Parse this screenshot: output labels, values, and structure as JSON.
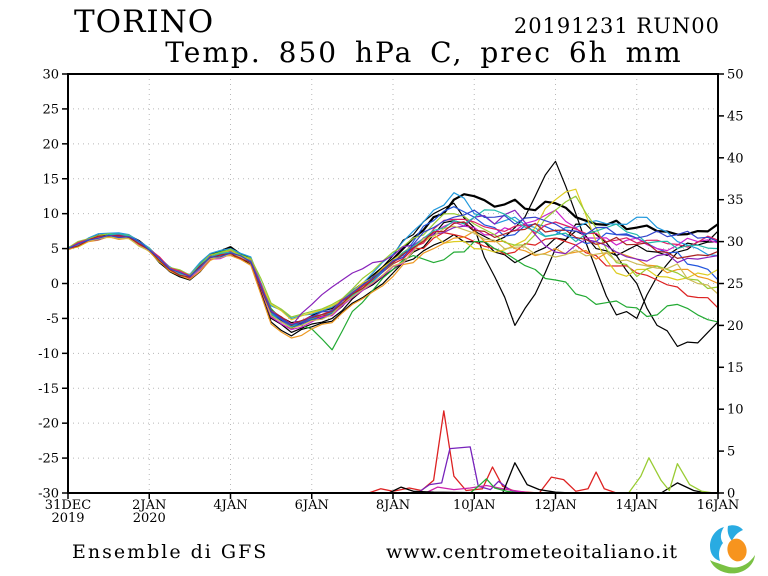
{
  "header": {
    "station": "TORINO",
    "run": "20191231 RUN00",
    "subtitle": "Temp. 850 hPa C, prec 6h mm"
  },
  "footer": {
    "model": "Ensemble di GFS",
    "website": "www.centrometeoitaliano.it",
    "logo_colors": {
      "blue": "#29abe2",
      "orange": "#f7941e",
      "green": "#7ac143"
    }
  },
  "chart_data": {
    "type": "line",
    "title": "Temp. 850 hPa C, prec 6h mm",
    "grid": {
      "horizontal_every": 5,
      "vertical_every_days": 2,
      "style": "dotted",
      "color": "#b8b8b8"
    },
    "x_axis": {
      "range_days": [
        0,
        16
      ],
      "labels": [
        {
          "label": "31DEC",
          "sublabel": "2019",
          "day": 0
        },
        {
          "label": "2JAN",
          "sublabel": "2020",
          "day": 2
        },
        {
          "label": "4JAN",
          "day": 4
        },
        {
          "label": "6JAN",
          "day": 6
        },
        {
          "label": "8JAN",
          "day": 8
        },
        {
          "label": "10JAN",
          "day": 10
        },
        {
          "label": "12JAN",
          "day": 12
        },
        {
          "label": "14JAN",
          "day": 14
        },
        {
          "label": "16JAN",
          "day": 16
        }
      ]
    },
    "y_left": {
      "name": "temperature-850hPa-C",
      "range": [
        -30,
        30
      ],
      "ticks": [
        30,
        25,
        20,
        15,
        10,
        5,
        0,
        -5,
        -10,
        -15,
        -20,
        -25,
        -30
      ]
    },
    "y_right": {
      "name": "precipitation-6h-mm",
      "range": [
        0,
        50
      ],
      "ticks": [
        50,
        45,
        40,
        35,
        30,
        25,
        20,
        15,
        10,
        5,
        0
      ]
    },
    "time_step_days": 0.5,
    "temperature_series": [
      {
        "name": "op",
        "color": "#000000",
        "width": 2.2,
        "values": [
          5.0,
          6.3,
          7.0,
          6.8,
          4.9,
          2.0,
          0.9,
          4.0,
          5.2,
          3.4,
          -4.6,
          -6.4,
          -5.2,
          -4.4,
          -1.5,
          0.8,
          3.5,
          6.5,
          9.5,
          12.0,
          12.5,
          11.0,
          12.0,
          10.5,
          11.5,
          9.5,
          8.5,
          9.0,
          8.0,
          7.5,
          7.0,
          7.5,
          8.5
        ]
      },
      {
        "name": "p01",
        "color": "#000000",
        "width": 1.2,
        "values": [
          5.1,
          6.4,
          7.1,
          6.9,
          5.0,
          2.3,
          1.1,
          4.2,
          4.6,
          3.6,
          -3.8,
          -5.6,
          -4.6,
          -3.6,
          -1.0,
          1.2,
          4.0,
          7.0,
          10.0,
          11.5,
          8.0,
          1.0,
          -6.0,
          -1.5,
          5.0,
          8.5,
          7.0,
          4.0,
          5.5,
          4.5,
          5.0,
          5.5,
          6.0
        ]
      },
      {
        "name": "p02",
        "color": "#000000",
        "width": 1.2,
        "values": [
          5.0,
          6.2,
          6.9,
          6.6,
          4.7,
          1.8,
          0.7,
          3.6,
          4.4,
          3.0,
          -5.0,
          -7.0,
          -5.8,
          -5.0,
          -2.2,
          -0.2,
          2.0,
          4.5,
          7.0,
          9.0,
          7.5,
          6.0,
          8.0,
          12.5,
          17.5,
          10.0,
          2.0,
          -4.5,
          -5.0,
          1.0,
          4.5,
          6.0,
          7.5
        ]
      },
      {
        "name": "p03",
        "color": "#000000",
        "width": 1.2,
        "values": [
          4.9,
          6.1,
          6.8,
          6.5,
          4.6,
          1.7,
          0.5,
          3.4,
          4.2,
          2.8,
          -5.5,
          -7.5,
          -6.2,
          -5.4,
          -2.8,
          -1.0,
          1.5,
          3.5,
          5.5,
          7.0,
          6.0,
          4.5,
          3.0,
          4.5,
          6.5,
          7.5,
          5.0,
          4.0,
          0.0,
          -6.0,
          -9.0,
          -8.5,
          -5.5
        ]
      },
      {
        "name": "p04",
        "color": "#dd2222",
        "width": 1.2,
        "values": [
          5.0,
          6.2,
          6.8,
          6.6,
          4.8,
          2.1,
          1.0,
          3.8,
          4.4,
          3.2,
          -4.0,
          -6.0,
          -5.0,
          -4.0,
          -1.6,
          0.5,
          2.8,
          5.0,
          6.5,
          7.0,
          6.0,
          5.0,
          4.5,
          5.5,
          6.5,
          5.5,
          4.0,
          2.5,
          1.5,
          0.5,
          -0.5,
          -2.0,
          -3.5
        ]
      },
      {
        "name": "p05",
        "color": "#22aa33",
        "width": 1.2,
        "values": [
          5.1,
          6.3,
          7.0,
          6.7,
          4.9,
          2.2,
          1.2,
          4.0,
          4.8,
          3.5,
          -3.6,
          -6.0,
          -6.5,
          -9.5,
          -4.0,
          -1.0,
          2.0,
          4.0,
          3.0,
          4.5,
          6.0,
          5.0,
          3.5,
          2.0,
          0.5,
          -1.5,
          -3.0,
          -2.5,
          -3.5,
          -4.5,
          -3.0,
          -4.5,
          -5.5
        ]
      },
      {
        "name": "p06",
        "color": "#2255dd",
        "width": 1.2,
        "values": [
          4.9,
          6.2,
          6.9,
          6.7,
          4.8,
          2.0,
          0.9,
          3.7,
          4.5,
          3.1,
          -4.2,
          -6.2,
          -5.1,
          -4.2,
          -1.8,
          0.3,
          3.2,
          6.0,
          9.0,
          11.0,
          9.5,
          8.0,
          7.0,
          8.5,
          7.5,
          6.5,
          6.0,
          7.0,
          6.5,
          5.0,
          4.5,
          2.5,
          0.5
        ]
      },
      {
        "name": "p07",
        "color": "#2299dd",
        "width": 1.2,
        "values": [
          5.2,
          6.5,
          7.2,
          7.0,
          5.1,
          2.4,
          1.3,
          4.3,
          5.0,
          3.8,
          -3.2,
          -5.0,
          -4.4,
          -3.4,
          -1.0,
          1.5,
          4.2,
          7.5,
          10.5,
          13.0,
          10.0,
          8.5,
          9.5,
          8.0,
          7.0,
          8.0,
          9.0,
          8.5,
          9.5,
          8.0,
          6.0,
          5.0,
          4.0
        ]
      },
      {
        "name": "p08",
        "color": "#cc22cc",
        "width": 1.2,
        "values": [
          5.0,
          6.1,
          6.7,
          6.5,
          4.7,
          1.9,
          0.8,
          3.5,
          4.2,
          2.9,
          -4.8,
          -6.6,
          -5.5,
          -4.6,
          -2.0,
          0.0,
          2.4,
          4.8,
          7.2,
          8.8,
          8.0,
          7.0,
          7.5,
          9.0,
          10.5,
          8.0,
          6.5,
          5.5,
          6.5,
          5.0,
          5.5,
          6.0,
          5.8
        ]
      },
      {
        "name": "p09",
        "color": "#ddcc22",
        "width": 1.2,
        "values": [
          5.0,
          6.0,
          6.6,
          6.4,
          4.6,
          2.0,
          1.1,
          3.9,
          4.7,
          3.4,
          -3.0,
          -5.2,
          -4.2,
          -3.2,
          -1.2,
          0.8,
          3.4,
          5.5,
          7.0,
          6.0,
          5.0,
          4.5,
          5.5,
          8.0,
          12.0,
          13.5,
          6.0,
          1.5,
          2.0,
          1.0,
          0.5,
          1.5,
          2.0
        ]
      },
      {
        "name": "p10",
        "color": "#ee9922",
        "width": 1.2,
        "values": [
          4.8,
          6.0,
          6.7,
          6.5,
          4.6,
          1.8,
          0.6,
          3.3,
          4.0,
          2.6,
          -5.8,
          -7.8,
          -6.5,
          -5.6,
          -3.0,
          -1.2,
          1.0,
          3.0,
          5.0,
          6.5,
          7.5,
          6.0,
          5.0,
          4.0,
          5.0,
          4.5,
          3.5,
          4.5,
          3.5,
          2.5,
          2.0,
          1.0,
          0.0
        ]
      },
      {
        "name": "p11",
        "color": "#99cc33",
        "width": 1.2,
        "values": [
          5.1,
          6.4,
          7.1,
          6.9,
          5.0,
          2.3,
          1.2,
          4.1,
          4.9,
          3.6,
          -2.8,
          -4.8,
          -4.0,
          -3.0,
          -0.8,
          1.8,
          4.5,
          6.5,
          8.5,
          10.0,
          8.5,
          7.0,
          5.5,
          7.0,
          10.5,
          12.5,
          8.0,
          3.0,
          1.0,
          2.5,
          1.5,
          0.5,
          -0.5
        ]
      },
      {
        "name": "p12",
        "color": "#8822bb",
        "width": 1.2,
        "values": [
          5.0,
          6.2,
          6.8,
          6.6,
          4.8,
          2.1,
          1.0,
          3.8,
          4.3,
          3.0,
          -4.4,
          -6.1,
          -3.0,
          -0.5,
          1.5,
          3.0,
          4.0,
          5.5,
          7.0,
          8.0,
          9.5,
          8.5,
          10.5,
          7.0,
          4.5,
          5.5,
          6.0,
          4.5,
          3.5,
          4.0,
          3.0,
          3.5,
          4.0
        ]
      },
      {
        "name": "p13",
        "color": "#dd2266",
        "width": 1.2,
        "values": [
          5.0,
          6.3,
          6.9,
          6.7,
          4.9,
          2.2,
          1.1,
          3.9,
          4.6,
          3.3,
          -3.9,
          -5.8,
          -4.7,
          -3.8,
          -1.4,
          0.7,
          3.1,
          5.2,
          7.8,
          9.2,
          8.8,
          7.8,
          8.2,
          7.2,
          8.8,
          7.8,
          7.2,
          6.2,
          5.8,
          6.2,
          5.6,
          5.9,
          6.2
        ]
      },
      {
        "name": "p14",
        "color": "#22bbaa",
        "width": 1.2,
        "values": [
          5.1,
          6.3,
          7.0,
          6.8,
          4.9,
          2.1,
          1.0,
          3.8,
          4.5,
          3.2,
          -4.3,
          -6.2,
          -5.0,
          -4.1,
          -1.7,
          0.4,
          2.9,
          5.3,
          7.6,
          9.0,
          9.5,
          10.5,
          9.0,
          7.5,
          7.0,
          6.0,
          7.5,
          8.5,
          7.0,
          6.0,
          5.0,
          5.5,
          5.0
        ]
      },
      {
        "name": "p15",
        "color": "#ccbb55",
        "width": 1.2,
        "values": [
          4.9,
          6.1,
          6.7,
          6.5,
          4.7,
          2.0,
          0.9,
          3.6,
          4.2,
          2.9,
          -4.6,
          -6.4,
          -5.3,
          -4.4,
          -1.9,
          0.1,
          2.5,
          4.6,
          6.8,
          8.2,
          7.2,
          6.2,
          5.2,
          4.2,
          3.8,
          4.8,
          4.2,
          3.2,
          2.8,
          2.2,
          2.8,
          0.0,
          -1.5
        ]
      },
      {
        "name": "p16",
        "color": "#aa2222",
        "width": 1.2,
        "values": [
          5.0,
          6.2,
          6.8,
          6.6,
          4.8,
          2.0,
          0.9,
          3.7,
          4.3,
          3.0,
          -4.1,
          -6.0,
          -4.9,
          -4.0,
          -1.5,
          0.6,
          3.0,
          5.1,
          7.4,
          8.6,
          7.6,
          6.6,
          7.6,
          8.6,
          7.6,
          6.6,
          5.6,
          6.6,
          5.6,
          4.6,
          3.6,
          4.1,
          4.6
        ]
      },
      {
        "name": "p17",
        "color": "#3344cc",
        "width": 1.2,
        "values": [
          5.0,
          6.2,
          6.9,
          6.7,
          4.8,
          2.1,
          1.0,
          3.8,
          4.4,
          3.1,
          -4.0,
          -5.9,
          -4.8,
          -3.9,
          -1.3,
          0.8,
          3.3,
          5.6,
          8.0,
          9.5,
          10.5,
          9.5,
          8.5,
          9.5,
          8.5,
          7.5,
          8.0,
          7.0,
          6.5,
          7.5,
          7.0,
          6.5,
          6.0
        ]
      }
    ],
    "precip_series": [
      {
        "name": "red",
        "color": "#dd2222",
        "points": [
          [
            0,
            0
          ],
          [
            7.4,
            0
          ],
          [
            7.7,
            0.5
          ],
          [
            8.0,
            0.2
          ],
          [
            8.4,
            0.6
          ],
          [
            8.7,
            0.3
          ],
          [
            9.0,
            1.5
          ],
          [
            9.25,
            9.8
          ],
          [
            9.5,
            2.0
          ],
          [
            9.8,
            0.3
          ],
          [
            10.2,
            0.5
          ],
          [
            10.45,
            3.1
          ],
          [
            10.7,
            0.8
          ],
          [
            11.0,
            0.2
          ],
          [
            11.6,
            0
          ],
          [
            11.9,
            1.9
          ],
          [
            12.2,
            1.6
          ],
          [
            12.5,
            0.2
          ],
          [
            12.8,
            0.5
          ],
          [
            13.0,
            2.5
          ],
          [
            13.2,
            0.5
          ],
          [
            13.5,
            0
          ],
          [
            16,
            0
          ]
        ]
      },
      {
        "name": "purple",
        "color": "#7722bb",
        "points": [
          [
            0,
            0
          ],
          [
            8.6,
            0
          ],
          [
            8.9,
            1.0
          ],
          [
            9.2,
            1.2
          ],
          [
            9.4,
            5.3
          ],
          [
            9.9,
            5.5
          ],
          [
            10.1,
            0.8
          ],
          [
            10.4,
            0.4
          ],
          [
            10.6,
            1.4
          ],
          [
            10.9,
            0.3
          ],
          [
            11.2,
            0
          ],
          [
            16,
            0
          ]
        ]
      },
      {
        "name": "magenta",
        "color": "#cc22aa",
        "points": [
          [
            0,
            0
          ],
          [
            8.8,
            0
          ],
          [
            9.1,
            0.7
          ],
          [
            9.5,
            0.4
          ],
          [
            9.9,
            0.6
          ],
          [
            10.3,
            0.9
          ],
          [
            10.7,
            0.5
          ],
          [
            11.1,
            0.2
          ],
          [
            11.4,
            0
          ],
          [
            16,
            0
          ]
        ]
      },
      {
        "name": "black",
        "color": "#000000",
        "points": [
          [
            0,
            0
          ],
          [
            7.9,
            0
          ],
          [
            8.2,
            0.7
          ],
          [
            8.5,
            0.2
          ],
          [
            9.0,
            0.1
          ],
          [
            10.7,
            0
          ],
          [
            11.0,
            3.6
          ],
          [
            11.3,
            1.0
          ],
          [
            11.6,
            0.4
          ],
          [
            12.0,
            0.1
          ],
          [
            12.4,
            0
          ],
          [
            14.6,
            0
          ],
          [
            15.0,
            1.2
          ],
          [
            15.4,
            0.3
          ],
          [
            15.7,
            0
          ],
          [
            16,
            0
          ]
        ]
      },
      {
        "name": "green",
        "color": "#22aa33",
        "points": [
          [
            0,
            0
          ],
          [
            9.9,
            0
          ],
          [
            10.1,
            0.8
          ],
          [
            10.3,
            1.7
          ],
          [
            10.5,
            0.6
          ],
          [
            10.8,
            0.2
          ],
          [
            11.1,
            0
          ],
          [
            16,
            0
          ]
        ]
      },
      {
        "name": "chartreuse",
        "color": "#99cc33",
        "points": [
          [
            0,
            0
          ],
          [
            13.8,
            0
          ],
          [
            14.1,
            2.0
          ],
          [
            14.3,
            4.2
          ],
          [
            14.6,
            1.5
          ],
          [
            14.8,
            0.3
          ],
          [
            15.0,
            3.5
          ],
          [
            15.3,
            1.0
          ],
          [
            15.6,
            0.2
          ],
          [
            15.9,
            0
          ],
          [
            16,
            0
          ]
        ]
      }
    ]
  }
}
